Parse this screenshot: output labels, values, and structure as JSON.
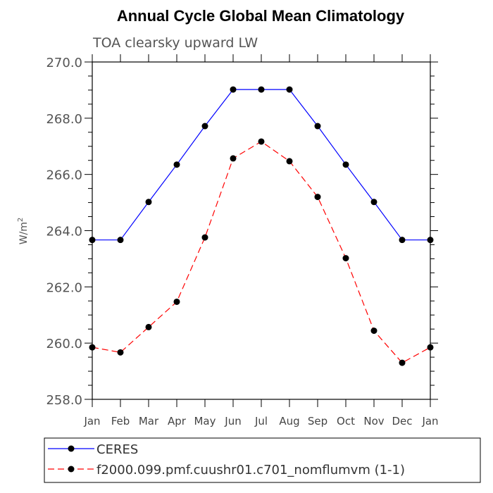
{
  "chart_data": {
    "type": "line",
    "title": "Annual Cycle Global Mean Climatology",
    "subtitle": "TOA clearsky upward LW",
    "ylabel": "W/m",
    "ylabel_sup": "2",
    "ylim": [
      258.0,
      270.0
    ],
    "yticks": [
      "258.0",
      "260.0",
      "262.0",
      "264.0",
      "266.0",
      "268.0",
      "270.0"
    ],
    "categories": [
      "Jan",
      "Feb",
      "Mar",
      "Apr",
      "May",
      "Jun",
      "Jul",
      "Aug",
      "Sep",
      "Oct",
      "Nov",
      "Dec",
      "Jan"
    ],
    "grid": false,
    "legend_position": "bottom",
    "series": [
      {
        "name": "CERES",
        "color": "#0000ff",
        "line_style": "solid",
        "marker": "filled-circle",
        "values": [
          263.67,
          263.67,
          265.02,
          266.35,
          267.72,
          269.02,
          269.02,
          269.02,
          267.72,
          266.35,
          265.02,
          263.67,
          263.67
        ]
      },
      {
        "name": "f2000.099.pmf.cuushr01.c701_nomflumvm (1-1)",
        "color": "#ff0000",
        "line_style": "dashed",
        "marker": "filled-circle",
        "values": [
          259.85,
          259.67,
          260.57,
          261.47,
          263.76,
          266.57,
          267.17,
          266.47,
          265.2,
          263.02,
          260.44,
          259.3,
          259.85
        ]
      }
    ]
  }
}
